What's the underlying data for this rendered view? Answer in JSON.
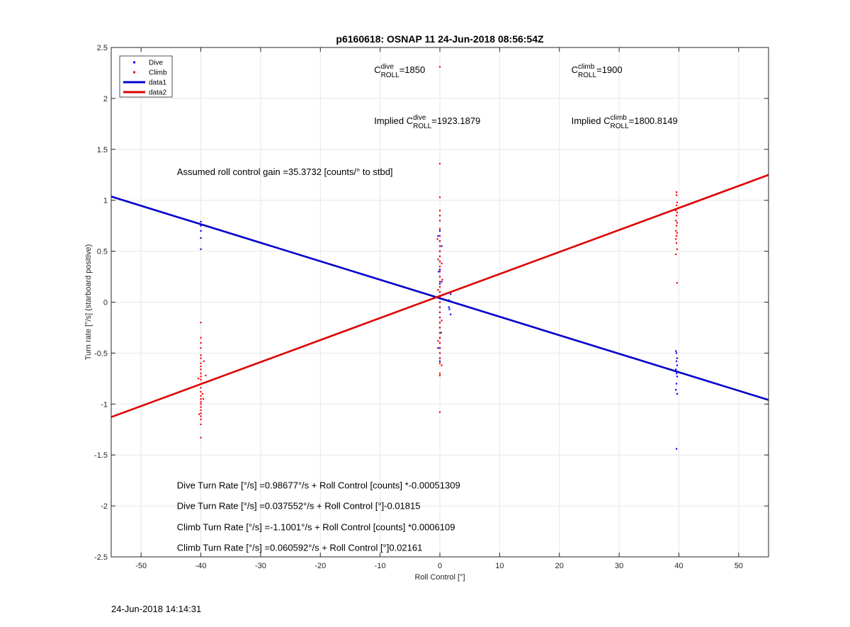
{
  "chart_data": {
    "type": "scatter",
    "title": "p6160618: OSNAP 11 24-Jun-2018 08:56:54Z",
    "xlabel": "Roll Control [°]",
    "ylabel": "Turn rate [°/s] (starboard positive)",
    "xlim": [
      -55,
      55
    ],
    "ylim": [
      -2.5,
      2.5
    ],
    "xticks": [
      -50,
      -40,
      -30,
      -20,
      -10,
      0,
      10,
      20,
      30,
      40,
      50
    ],
    "yticks": [
      -2.5,
      -2,
      -1.5,
      -1,
      -0.5,
      0,
      0.5,
      1,
      1.5,
      2,
      2.5
    ],
    "grid": true,
    "legend_placement": "top-left",
    "series": [
      {
        "name": "Dive",
        "kind": "points",
        "color": "#0000ff",
        "points": [
          [
            -40,
            0.79
          ],
          [
            -40,
            0.75
          ],
          [
            -40,
            0.7
          ],
          [
            -40,
            0.63
          ],
          [
            -40,
            0.52
          ],
          [
            0,
            0.7
          ],
          [
            0,
            0.6
          ],
          [
            0,
            0.5
          ],
          [
            0,
            0.4
          ],
          [
            0,
            0.32
          ],
          [
            0,
            0.25
          ],
          [
            0,
            0.18
          ],
          [
            0,
            0.1
          ],
          [
            0,
            0.05
          ],
          [
            0,
            0.0
          ],
          [
            0,
            -0.05
          ],
          [
            0,
            -0.1
          ],
          [
            0,
            -0.15
          ],
          [
            0,
            -0.2
          ],
          [
            0,
            -0.25
          ],
          [
            0,
            -0.3
          ],
          [
            0,
            -0.35
          ],
          [
            0,
            -0.4
          ],
          [
            0,
            -0.45
          ],
          [
            0,
            -0.5
          ],
          [
            0,
            -0.55
          ],
          [
            0,
            -0.58
          ],
          [
            -0.3,
            0.65
          ],
          [
            0.3,
            0.55
          ],
          [
            -0.2,
            0.3
          ],
          [
            0.2,
            -0.3
          ],
          [
            -0.3,
            -0.45
          ],
          [
            0.3,
            0.2
          ],
          [
            1.5,
            0.02
          ],
          [
            1.5,
            -0.05
          ],
          [
            1.8,
            -0.12
          ],
          [
            1.6,
            -0.07
          ],
          [
            1.8,
            0.08
          ],
          [
            39.5,
            -0.48
          ],
          [
            39.6,
            -0.5
          ],
          [
            39.7,
            -0.55
          ],
          [
            39.6,
            -0.58
          ],
          [
            39.7,
            -0.62
          ],
          [
            39.5,
            -0.66
          ],
          [
            39.6,
            -0.7
          ],
          [
            39.7,
            -0.73
          ],
          [
            39.6,
            -0.8
          ],
          [
            39.5,
            -0.86
          ],
          [
            39.7,
            -0.9
          ],
          [
            39.6,
            -1.44
          ]
        ]
      },
      {
        "name": "Climb",
        "kind": "points",
        "color": "#ff0000",
        "points": [
          [
            -40,
            -0.2
          ],
          [
            -40,
            -0.35
          ],
          [
            -40,
            -0.4
          ],
          [
            -40,
            -0.45
          ],
          [
            -40,
            -0.52
          ],
          [
            -40,
            -0.55
          ],
          [
            -40,
            -0.6
          ],
          [
            -40,
            -0.63
          ],
          [
            -40,
            -0.66
          ],
          [
            -40,
            -0.7
          ],
          [
            -40,
            -0.73
          ],
          [
            -40,
            -0.76
          ],
          [
            -40,
            -0.8
          ],
          [
            -40,
            -0.84
          ],
          [
            -40,
            -0.88
          ],
          [
            -40,
            -0.92
          ],
          [
            -40,
            -0.95
          ],
          [
            -40,
            -0.98
          ],
          [
            -40,
            -1.0
          ],
          [
            -40,
            -1.03
          ],
          [
            -40,
            -1.06
          ],
          [
            -40,
            -1.09
          ],
          [
            -40,
            -1.12
          ],
          [
            -40,
            -1.15
          ],
          [
            -40,
            -1.2
          ],
          [
            -40,
            -1.33
          ],
          [
            -39.5,
            -0.58
          ],
          [
            -39.7,
            -0.9
          ],
          [
            -40.4,
            -0.75
          ],
          [
            -39.2,
            -0.72
          ],
          [
            -40.3,
            -1.1
          ],
          [
            -39.6,
            -0.95
          ],
          [
            0,
            2.31
          ],
          [
            0,
            1.36
          ],
          [
            0,
            1.03
          ],
          [
            0,
            0.9
          ],
          [
            0,
            0.85
          ],
          [
            0,
            0.8
          ],
          [
            0,
            0.72
          ],
          [
            0,
            0.65
          ],
          [
            0,
            0.6
          ],
          [
            0,
            0.55
          ],
          [
            0,
            0.5
          ],
          [
            0,
            0.45
          ],
          [
            0,
            0.4
          ],
          [
            0,
            0.35
          ],
          [
            0,
            0.3
          ],
          [
            0,
            0.25
          ],
          [
            0,
            0.2
          ],
          [
            0,
            0.15
          ],
          [
            0,
            0.1
          ],
          [
            0,
            0.05
          ],
          [
            0,
            0.0
          ],
          [
            0,
            -0.05
          ],
          [
            0,
            -0.1
          ],
          [
            0,
            -0.15
          ],
          [
            0,
            -0.2
          ],
          [
            0,
            -0.25
          ],
          [
            0,
            -0.3
          ],
          [
            0,
            -0.35
          ],
          [
            0,
            -0.4
          ],
          [
            0,
            -0.45
          ],
          [
            0,
            -0.5
          ],
          [
            0,
            -0.55
          ],
          [
            0,
            -0.6
          ],
          [
            0,
            -0.7
          ],
          [
            0,
            -0.72
          ],
          [
            0,
            -1.08
          ],
          [
            -0.3,
            0.42
          ],
          [
            0.3,
            0.38
          ],
          [
            -0.3,
            0.12
          ],
          [
            0.3,
            -0.18
          ],
          [
            -0.3,
            -0.38
          ],
          [
            0.3,
            -0.62
          ],
          [
            -0.4,
            0.62
          ],
          [
            0.4,
            0.22
          ],
          [
            39.6,
            1.08
          ],
          [
            39.6,
            1.05
          ],
          [
            39.7,
            0.98
          ],
          [
            39.6,
            0.95
          ],
          [
            39.5,
            0.9
          ],
          [
            39.7,
            0.88
          ],
          [
            39.6,
            0.85
          ],
          [
            39.5,
            0.8
          ],
          [
            39.7,
            0.78
          ],
          [
            39.6,
            0.75
          ],
          [
            39.5,
            0.7
          ],
          [
            39.7,
            0.68
          ],
          [
            39.6,
            0.65
          ],
          [
            39.5,
            0.62
          ],
          [
            39.6,
            0.58
          ],
          [
            39.7,
            0.52
          ],
          [
            39.5,
            0.47
          ],
          [
            39.7,
            0.19
          ]
        ]
      },
      {
        "name": "data1",
        "kind": "line",
        "color": "#0000cc",
        "points": [
          [
            -55,
            1.037
          ],
          [
            55,
            -0.96
          ]
        ]
      },
      {
        "name": "data2",
        "kind": "line",
        "color": "#dd0000",
        "points": [
          [
            -55,
            -1.128
          ],
          [
            55,
            1.249
          ]
        ]
      }
    ],
    "annotations": [
      {
        "id": "c-roll-dive",
        "parts": [
          {
            "t": "C",
            "style": "normal"
          },
          {
            "t": "dive",
            "style": "sup"
          },
          {
            "t": "ROLL",
            "style": "sub"
          },
          {
            "t": "=1850",
            "style": "normal"
          }
        ]
      },
      {
        "id": "c-roll-climb",
        "parts": [
          {
            "t": "C",
            "style": "normal"
          },
          {
            "t": "climb",
            "style": "sup"
          },
          {
            "t": "ROLL",
            "style": "sub"
          },
          {
            "t": "=1900",
            "style": "normal"
          }
        ]
      },
      {
        "id": "implied-dive",
        "parts": [
          {
            "t": "Implied C",
            "style": "normal"
          },
          {
            "t": "dive",
            "style": "sup"
          },
          {
            "t": "ROLL",
            "style": "sub"
          },
          {
            "t": "=1923.1879",
            "style": "normal"
          }
        ]
      },
      {
        "id": "implied-climb",
        "parts": [
          {
            "t": "Implied C",
            "style": "normal"
          },
          {
            "t": "climb",
            "style": "sup"
          },
          {
            "t": "ROLL",
            "style": "sub"
          },
          {
            "t": "=1800.8149",
            "style": "normal"
          }
        ]
      },
      {
        "id": "roll-gain",
        "parts": [
          {
            "t": "Assumed roll control gain =35.3732 [counts/° to stbd]",
            "style": "normal"
          }
        ]
      },
      {
        "id": "dive-counts",
        "parts": [
          {
            "t": "Dive Turn Rate [°/s] =0.98677°/s + Roll Control [counts] *-0.00051309",
            "style": "normal"
          }
        ]
      },
      {
        "id": "dive-deg",
        "parts": [
          {
            "t": "Dive Turn Rate [°/s] =0.037552°/s + Roll Control [°]-0.01815",
            "style": "normal"
          }
        ]
      },
      {
        "id": "climb-counts",
        "parts": [
          {
            "t": "Climb Turn Rate [°/s] =-1.1001°/s + Roll Control [counts] *0.0006109",
            "style": "normal"
          }
        ]
      },
      {
        "id": "climb-deg",
        "parts": [
          {
            "t": "Climb Turn Rate [°/s] =0.060592°/s + Roll Control [°]0.02161",
            "style": "normal"
          }
        ]
      }
    ]
  },
  "footer": {
    "timestamp": "24-Jun-2018 14:14:31"
  }
}
